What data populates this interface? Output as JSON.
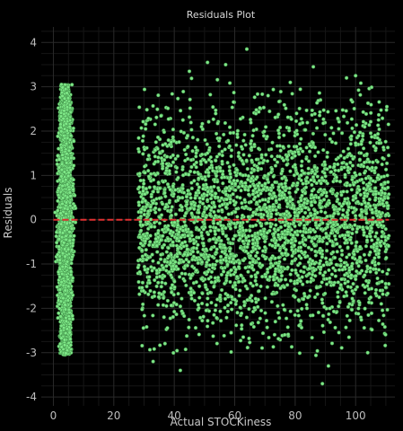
{
  "chart_data": {
    "type": "scatter",
    "title": "Residuals Plot",
    "xlabel": "Actual STOCKiness",
    "ylabel": "Residuals",
    "xlim": [
      -4,
      113
    ],
    "ylim": [
      -4.2,
      4.35
    ],
    "xticks": [
      0,
      20,
      40,
      60,
      80,
      100
    ],
    "yticks": [
      -4,
      -3,
      -2,
      -1,
      0,
      1,
      2,
      3,
      4
    ],
    "grid": true,
    "reference_line": {
      "y": 0,
      "x_range": [
        0,
        111
      ],
      "color": "#e03030",
      "style": "dashed"
    },
    "colors": {
      "background": "#000000",
      "points": "#7ee787",
      "point_edge": "#3f8f47",
      "grid": "#2a2a2a",
      "grid_minor": "#161616"
    },
    "clusters": [
      {
        "x_range": [
          0,
          8
        ],
        "x_center": 4,
        "y_range": [
          -3.05,
          3.05
        ],
        "density": "very high"
      },
      {
        "x_range": [
          28,
          111
        ],
        "y_range": [
          -3.1,
          3.2
        ],
        "density": "high"
      }
    ],
    "notable_points": [
      {
        "x": 64,
        "y": 3.85
      },
      {
        "x": 51,
        "y": 3.55
      },
      {
        "x": 57,
        "y": 3.5
      },
      {
        "x": 86,
        "y": 3.45
      },
      {
        "x": 45,
        "y": 3.35
      },
      {
        "x": 97,
        "y": 3.2
      },
      {
        "x": 100,
        "y": 3.25
      },
      {
        "x": 42,
        "y": -3.4
      },
      {
        "x": 89,
        "y": -3.7
      },
      {
        "x": 91,
        "y": -3.3
      },
      {
        "x": 33,
        "y": -3.2
      },
      {
        "x": 104,
        "y": -3.0
      }
    ]
  }
}
